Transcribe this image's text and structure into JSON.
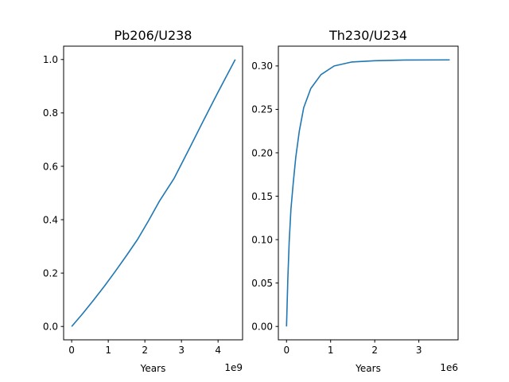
{
  "chart_data": [
    {
      "type": "line",
      "title": "Pb206/U238",
      "xlabel": "Years",
      "ylabel": "",
      "x_offset_label": "1e9",
      "xlim": [
        -0.22,
        4.67
      ],
      "ylim": [
        -0.05,
        1.05
      ],
      "xticks": [
        0,
        1,
        2,
        3,
        4
      ],
      "xtick_labels": [
        "0",
        "1",
        "2",
        "3",
        "4"
      ],
      "yticks": [
        0.0,
        0.2,
        0.4,
        0.6,
        0.8,
        1.0
      ],
      "ytick_labels": [
        "0.0",
        "0.2",
        "0.4",
        "0.6",
        "0.8",
        "1.0"
      ],
      "grid": false,
      "color": "#1f77b4",
      "series": [
        {
          "x": [
            0,
            0.3,
            0.6,
            0.9,
            1.2,
            1.5,
            1.8,
            2.1,
            2.4,
            2.8,
            3.2,
            3.6,
            4.0,
            4.47
          ],
          "y": [
            0.0,
            0.048,
            0.099,
            0.152,
            0.208,
            0.266,
            0.326,
            0.396,
            0.47,
            0.555,
            0.662,
            0.771,
            0.878,
            1.0
          ]
        }
      ]
    },
    {
      "type": "line",
      "title": "Th230/U234",
      "xlabel": "Years",
      "ylabel": "",
      "x_offset_label": "1e6",
      "xlim": [
        -0.185,
        3.89
      ],
      "ylim": [
        -0.0154,
        0.3228
      ],
      "xticks": [
        0,
        1,
        2,
        3
      ],
      "xtick_labels": [
        "0",
        "1",
        "2",
        "3"
      ],
      "yticks": [
        0.0,
        0.05,
        0.1,
        0.15,
        0.2,
        0.25,
        0.3
      ],
      "ytick_labels": [
        "0.00",
        "0.05",
        "0.10",
        "0.15",
        "0.20",
        "0.25",
        "0.30"
      ],
      "grid": false,
      "color": "#1f77b4",
      "series": [
        {
          "x": [
            0,
            0.03,
            0.06,
            0.1,
            0.15,
            0.21,
            0.29,
            0.39,
            0.55,
            0.78,
            1.08,
            1.47,
            2.0,
            2.7,
            3.7
          ],
          "y": [
            0.0,
            0.055,
            0.097,
            0.135,
            0.164,
            0.195,
            0.225,
            0.252,
            0.274,
            0.29,
            0.3,
            0.3045,
            0.306,
            0.3068,
            0.307
          ]
        }
      ]
    }
  ]
}
